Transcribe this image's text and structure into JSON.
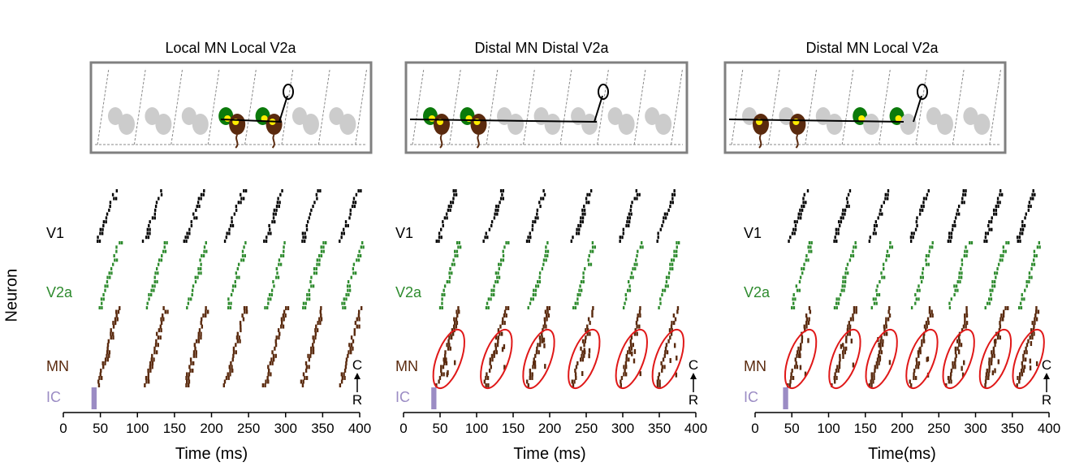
{
  "y_axis_label": "Neuron",
  "colors": {
    "V1": "#000000",
    "V2a": "#2e8b2e",
    "MN": "#5a2a0e",
    "IC": "#9b8cc4",
    "circle": "#e01818",
    "gray_cell": "#cccccc",
    "box": "#808080",
    "soma_dot": "#ffee00",
    "v2a_soma": "#0b7a0b"
  },
  "chart_data": [
    {
      "type": "raster",
      "title": "Local MN Local V2a",
      "xlabel": "Time (ms)",
      "xticks": [
        0,
        50,
        100,
        150,
        200,
        250,
        300,
        350,
        400
      ],
      "xlim": [
        0,
        400
      ],
      "rows": [
        "V1",
        "V2a",
        "MN",
        "IC"
      ],
      "stimulus_ms": [
        38,
        45
      ],
      "burst_onsets_ms": [
        45,
        108,
        163,
        217,
        270,
        320,
        372
      ],
      "mn_circled": false,
      "axis_note_top": "C",
      "axis_note_bottom": "R"
    },
    {
      "type": "raster",
      "title": "Distal MN Distal V2a",
      "xlabel": "Time (ms)",
      "xticks": [
        0,
        50,
        100,
        150,
        200,
        250,
        300,
        350,
        400
      ],
      "xlim": [
        0,
        400
      ],
      "rows": [
        "V1",
        "V2a",
        "MN",
        "IC"
      ],
      "stimulus_ms": [
        38,
        45
      ],
      "burst_onsets_ms": [
        45,
        110,
        168,
        230,
        295,
        345
      ],
      "mn_circled": true,
      "axis_note_top": "C",
      "axis_note_bottom": "R"
    },
    {
      "type": "raster",
      "title": "Distal MN Local V2a",
      "xlabel": "Time(ms)",
      "xticks": [
        0,
        50,
        100,
        150,
        200,
        250,
        300,
        350,
        400
      ],
      "xlim": [
        0,
        400
      ],
      "rows": [
        "V1",
        "V2a",
        "MN",
        "IC"
      ],
      "stimulus_ms": [
        38,
        45
      ],
      "burst_onsets_ms": [
        45,
        105,
        155,
        210,
        260,
        310,
        355
      ],
      "mn_circled": true,
      "axis_note_top": "C",
      "axis_note_bottom": "R"
    }
  ]
}
